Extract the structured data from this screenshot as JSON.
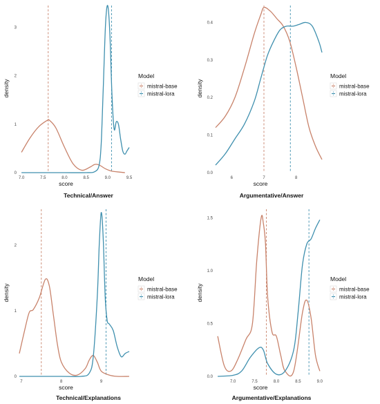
{
  "colors": {
    "base": "#C8826A",
    "lora": "#3E8FAE"
  },
  "chart_data": [
    {
      "type": "line",
      "title": "Technical/Answer",
      "xlabel": "score",
      "ylabel": "density",
      "xlim": [
        6.95,
        9.5
      ],
      "ylim": [
        0,
        3.45
      ],
      "xticks": [
        7.0,
        7.5,
        8.0,
        8.5,
        9.0,
        9.5
      ],
      "xtick_labels": [
        "7.0",
        "7.5",
        "8.0",
        "8.5",
        "9.0",
        "9.5"
      ],
      "yticks": [
        0,
        1,
        2,
        3
      ],
      "ytick_labels": [
        "0",
        "1",
        "2",
        "3"
      ],
      "legend": {
        "title": "Model",
        "position": "right"
      },
      "series": [
        {
          "name": "mistral-base",
          "color": "base",
          "mean": 7.62,
          "x": [
            7.0,
            7.2,
            7.4,
            7.6,
            7.65,
            7.8,
            8.0,
            8.2,
            8.4,
            8.6,
            8.7,
            8.8,
            8.95,
            9.1,
            9.3,
            9.4
          ],
          "y": [
            0.42,
            0.72,
            0.95,
            1.08,
            1.08,
            0.92,
            0.52,
            0.18,
            0.05,
            0.12,
            0.17,
            0.16,
            0.08,
            0.03,
            0.01,
            0.0
          ]
        },
        {
          "name": "mistral-lora",
          "color": "lora",
          "mean": 9.09,
          "x": [
            7.0,
            7.5,
            8.0,
            8.5,
            8.7,
            8.8,
            8.85,
            8.9,
            8.95,
            9.0,
            9.05,
            9.1,
            9.15,
            9.2,
            9.25,
            9.3,
            9.35,
            9.4,
            9.45,
            9.5
          ],
          "y": [
            0,
            0,
            0,
            0,
            0.02,
            0.15,
            0.6,
            1.8,
            3.05,
            3.45,
            2.9,
            1.6,
            0.9,
            1.05,
            1.0,
            0.7,
            0.45,
            0.38,
            0.45,
            0.52
          ]
        }
      ]
    },
    {
      "type": "line",
      "title": "Argumentative/Answer",
      "xlabel": "score",
      "ylabel": "density",
      "xlim": [
        5.5,
        8.8
      ],
      "ylim": [
        0,
        0.445
      ],
      "xticks": [
        6,
        7,
        8
      ],
      "xtick_labels": [
        "6",
        "7",
        "8"
      ],
      "yticks": [
        0,
        0.1,
        0.2,
        0.3,
        0.4
      ],
      "ytick_labels": [
        "0.0",
        "0.1",
        "0.2",
        "0.3",
        "0.4"
      ],
      "legend": {
        "title": "Model",
        "position": "right"
      },
      "series": [
        {
          "name": "mistral-base",
          "color": "base",
          "mean": 7.0,
          "x": [
            5.5,
            5.8,
            6.1,
            6.4,
            6.7,
            6.9,
            7.0,
            7.2,
            7.4,
            7.6,
            7.8,
            8.0,
            8.2,
            8.4,
            8.6,
            8.8
          ],
          "y": [
            0.12,
            0.15,
            0.2,
            0.28,
            0.37,
            0.42,
            0.44,
            0.43,
            0.41,
            0.39,
            0.35,
            0.28,
            0.2,
            0.12,
            0.07,
            0.035
          ]
        },
        {
          "name": "mistral-lora",
          "color": "lora",
          "mean": 7.82,
          "x": [
            5.5,
            5.8,
            6.1,
            6.4,
            6.7,
            6.9,
            7.1,
            7.3,
            7.5,
            7.7,
            7.9,
            8.1,
            8.3,
            8.5,
            8.7,
            8.8
          ],
          "y": [
            0.02,
            0.05,
            0.09,
            0.13,
            0.19,
            0.25,
            0.31,
            0.35,
            0.38,
            0.39,
            0.39,
            0.395,
            0.4,
            0.39,
            0.35,
            0.32
          ]
        }
      ]
    },
    {
      "type": "line",
      "title": "Technical/Explanations",
      "xlabel": "score",
      "ylabel": "density",
      "xlim": [
        6.95,
        9.7
      ],
      "ylim": [
        0,
        2.55
      ],
      "xticks": [
        7,
        8,
        9
      ],
      "xtick_labels": [
        "7",
        "8",
        "9"
      ],
      "yticks": [
        0,
        1,
        2
      ],
      "ytick_labels": [
        "0",
        "1",
        "2"
      ],
      "legend": {
        "title": "Model",
        "position": "right"
      },
      "series": [
        {
          "name": "mistral-base",
          "color": "base",
          "mean": 7.5,
          "x": [
            6.95,
            7.1,
            7.2,
            7.3,
            7.45,
            7.6,
            7.7,
            7.8,
            7.9,
            8.0,
            8.2,
            8.4,
            8.6,
            8.7,
            8.8,
            8.9,
            9.0,
            9.2,
            9.4,
            9.7
          ],
          "y": [
            0.35,
            0.75,
            0.98,
            1.02,
            1.2,
            1.48,
            1.38,
            0.95,
            0.5,
            0.22,
            0.05,
            0.02,
            0.12,
            0.25,
            0.32,
            0.22,
            0.08,
            0.02,
            0.0,
            0.0
          ]
        },
        {
          "name": "mistral-lora",
          "color": "lora",
          "mean": 9.12,
          "x": [
            6.95,
            8.0,
            8.5,
            8.7,
            8.8,
            8.9,
            8.95,
            9.0,
            9.05,
            9.1,
            9.15,
            9.2,
            9.3,
            9.4,
            9.5,
            9.6,
            9.7
          ],
          "y": [
            0,
            0,
            0,
            0.05,
            0.3,
            1.2,
            2.0,
            2.5,
            2.1,
            1.2,
            0.85,
            0.8,
            0.7,
            0.45,
            0.3,
            0.35,
            0.38
          ]
        }
      ]
    },
    {
      "type": "line",
      "title": "Argumentative/Explanations",
      "xlabel": "score",
      "ylabel": "density",
      "xlim": [
        6.6,
        9.05
      ],
      "ylim": [
        0,
        1.58
      ],
      "xticks": [
        7.0,
        7.5,
        8.0,
        8.5,
        9.0
      ],
      "xtick_labels": [
        "7.0",
        "7.5",
        "8.0",
        "8.5",
        "9.0"
      ],
      "yticks": [
        0,
        0.5,
        1.0,
        1.5
      ],
      "ytick_labels": [
        "0.0",
        "0.5",
        "1.0",
        "1.5"
      ],
      "legend": {
        "title": "Model",
        "position": "right"
      },
      "series": [
        {
          "name": "mistral-base",
          "color": "base",
          "mean": 7.77,
          "x": [
            6.65,
            6.8,
            6.95,
            7.1,
            7.3,
            7.45,
            7.55,
            7.65,
            7.7,
            7.75,
            7.8,
            7.9,
            8.0,
            8.1,
            8.2,
            8.4,
            8.6,
            8.7,
            8.8,
            8.9,
            9.0
          ],
          "y": [
            0.38,
            0.1,
            0.05,
            0.15,
            0.35,
            0.5,
            1.1,
            1.5,
            1.45,
            1.25,
            0.75,
            0.42,
            0.38,
            0.2,
            0.05,
            0.05,
            0.6,
            0.72,
            0.55,
            0.2,
            0.05
          ]
        },
        {
          "name": "mistral-lora",
          "color": "lora",
          "mean": 8.75,
          "x": [
            6.65,
            7.0,
            7.2,
            7.4,
            7.6,
            7.7,
            7.8,
            8.0,
            8.2,
            8.4,
            8.5,
            8.6,
            8.7,
            8.8,
            8.9,
            9.0
          ],
          "y": [
            0,
            0.01,
            0.05,
            0.18,
            0.27,
            0.25,
            0.12,
            0.02,
            0.05,
            0.25,
            0.6,
            1.05,
            1.25,
            1.3,
            1.4,
            1.48
          ]
        }
      ]
    }
  ]
}
